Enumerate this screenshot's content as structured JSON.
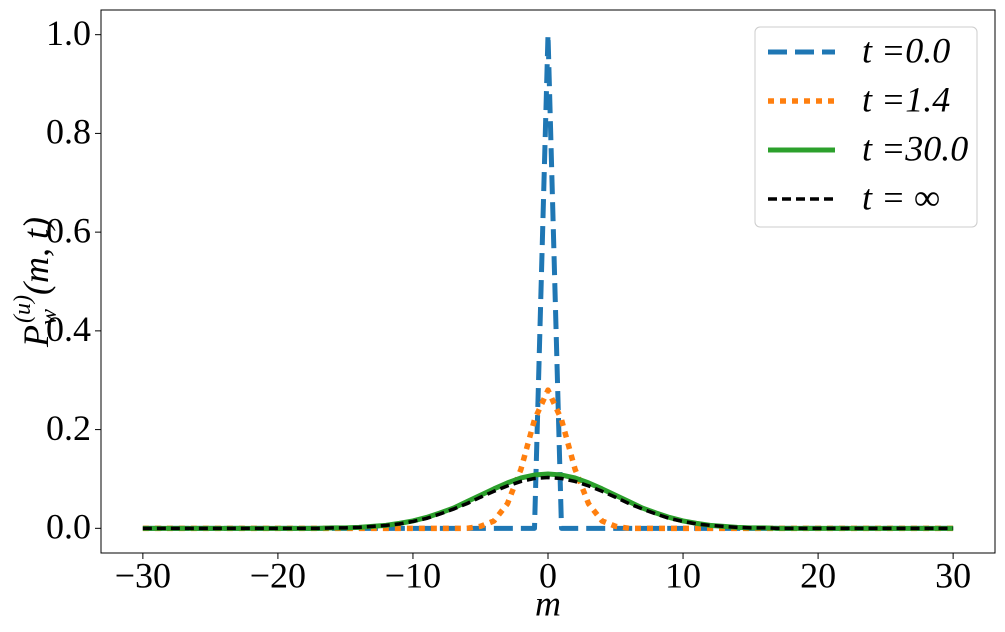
{
  "chart_data": {
    "type": "line",
    "x_label": "m",
    "y_label": {
      "base": "P",
      "sub": "w",
      "sup": "(u)",
      "args": "(m, t)"
    },
    "x": [
      -30,
      -29,
      -28,
      -27,
      -26,
      -25,
      -24,
      -23,
      -22,
      -21,
      -20,
      -19,
      -18,
      -17,
      -16,
      -15,
      -14,
      -13,
      -12,
      -11,
      -10,
      -9,
      -8,
      -7,
      -6,
      -5,
      -4,
      -3,
      -2,
      -1,
      0,
      1,
      2,
      3,
      4,
      5,
      6,
      7,
      8,
      9,
      10,
      11,
      12,
      13,
      14,
      15,
      16,
      17,
      18,
      19,
      20,
      21,
      22,
      23,
      24,
      25,
      26,
      27,
      28,
      29,
      30
    ],
    "series": [
      {
        "name": "t =0.0",
        "color": "#1f77b4",
        "linestyle": "dashed",
        "values": [
          0,
          0,
          0,
          0,
          0,
          0,
          0,
          0,
          0,
          0,
          0,
          0,
          0,
          0,
          0,
          0,
          0,
          0,
          0,
          0,
          0,
          0,
          0,
          0,
          0,
          0,
          0,
          0,
          0,
          0,
          1,
          0,
          0,
          0,
          0,
          0,
          0,
          0,
          0,
          0,
          0,
          0,
          0,
          0,
          0,
          0,
          0,
          0,
          0,
          0,
          0,
          0,
          0,
          0,
          0,
          0,
          0,
          0,
          0,
          0,
          0
        ]
      },
      {
        "name": "t =1.4",
        "color": "#ff7f0e",
        "linestyle": "dotted",
        "values": [
          0,
          0,
          0,
          0,
          0,
          0,
          0,
          0,
          0,
          0,
          0,
          0,
          0,
          0,
          0,
          0,
          0,
          0,
          0,
          0,
          0,
          0,
          0,
          0,
          0,
          0.004,
          0.015,
          0.05,
          0.12,
          0.22,
          0.28,
          0.22,
          0.12,
          0.05,
          0.015,
          0.004,
          0,
          0,
          0,
          0,
          0,
          0,
          0,
          0,
          0,
          0,
          0,
          0,
          0,
          0,
          0,
          0,
          0,
          0,
          0,
          0,
          0,
          0,
          0,
          0,
          0
        ]
      },
      {
        "name": "t =30.0",
        "color": "#2ca02c",
        "linestyle": "solid",
        "values": [
          0,
          0,
          0,
          0,
          0,
          0,
          0,
          0,
          0,
          0,
          0,
          0,
          0,
          0,
          0.001,
          0.001,
          0.002,
          0.004,
          0.006,
          0.01,
          0.015,
          0.022,
          0.031,
          0.041,
          0.054,
          0.067,
          0.08,
          0.092,
          0.102,
          0.108,
          0.11,
          0.108,
          0.102,
          0.092,
          0.08,
          0.067,
          0.054,
          0.041,
          0.031,
          0.022,
          0.015,
          0.01,
          0.006,
          0.004,
          0.002,
          0.001,
          0.001,
          0,
          0,
          0,
          0,
          0,
          0,
          0,
          0,
          0,
          0,
          0,
          0,
          0,
          0
        ]
      },
      {
        "name": "t = ∞",
        "color": "#000000",
        "linestyle": "dashed-thin",
        "values": [
          0,
          0,
          0,
          0,
          0,
          0,
          0,
          0,
          0,
          0,
          0,
          0,
          0,
          0,
          0.001,
          0.001,
          0.002,
          0.004,
          0.006,
          0.009,
          0.014,
          0.02,
          0.029,
          0.039,
          0.05,
          0.063,
          0.075,
          0.086,
          0.095,
          0.101,
          0.103,
          0.101,
          0.095,
          0.086,
          0.075,
          0.063,
          0.05,
          0.039,
          0.029,
          0.02,
          0.014,
          0.009,
          0.006,
          0.004,
          0.002,
          0.001,
          0.001,
          0,
          0,
          0,
          0,
          0,
          0,
          0,
          0,
          0,
          0,
          0,
          0,
          0,
          0
        ]
      }
    ],
    "xlim": [
      -33.1,
      33.1
    ],
    "ylim": [
      -0.05,
      1.05
    ],
    "xticks": [
      {
        "value": -30,
        "label": "−30"
      },
      {
        "value": -20,
        "label": "−20"
      },
      {
        "value": -10,
        "label": "−10"
      },
      0,
      10,
      20,
      30
    ],
    "yticks": [
      {
        "value": 0,
        "label": "0.0"
      },
      {
        "value": 0.2,
        "label": "0.2"
      },
      {
        "value": 0.4,
        "label": "0.4"
      },
      {
        "value": 0.6,
        "label": "0.6"
      },
      {
        "value": 0.8,
        "label": "0.8"
      },
      {
        "value": 1,
        "label": "1.0"
      }
    ],
    "legend": "upper right"
  }
}
